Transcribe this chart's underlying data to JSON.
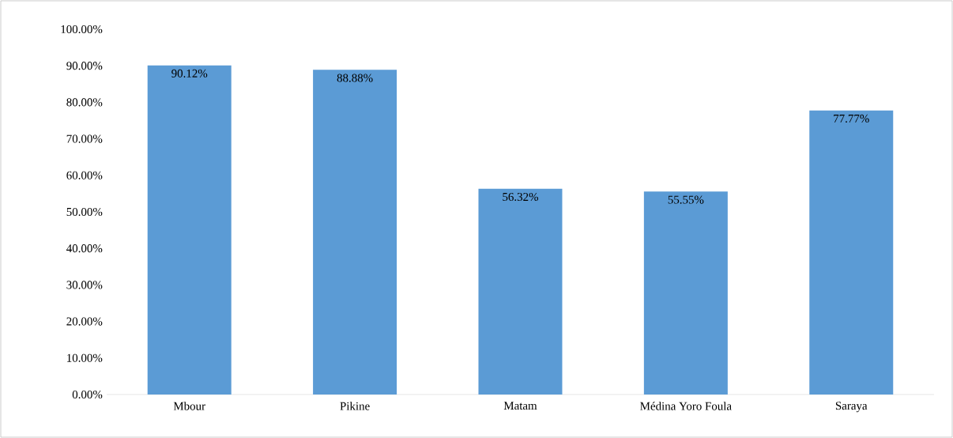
{
  "chart_data": {
    "type": "bar",
    "categories": [
      "Mbour",
      "Pikine",
      "Matam",
      "Médina Yoro Foula",
      "Saraya"
    ],
    "values": [
      90.12,
      88.88,
      56.32,
      55.55,
      77.77
    ],
    "value_labels": [
      "90.12%",
      "88.88%",
      "56.32%",
      "55.55%",
      "77.77%"
    ],
    "color": "#5b9bd5",
    "ylim": [
      0,
      100
    ],
    "yticks": [
      {
        "value": 0,
        "label": "0.00%"
      },
      {
        "value": 10,
        "label": "10.00%"
      },
      {
        "value": 20,
        "label": "20.00%"
      },
      {
        "value": 30,
        "label": "30.00%"
      },
      {
        "value": 40,
        "label": "40.00%"
      },
      {
        "value": 50,
        "label": "50.00%"
      },
      {
        "value": 60,
        "label": "60.00%"
      },
      {
        "value": 70,
        "label": "70.00%"
      },
      {
        "value": 80,
        "label": "80.00%"
      },
      {
        "value": 90,
        "label": "90.00%"
      },
      {
        "value": 100,
        "label": "100.00%"
      }
    ],
    "grid": false
  }
}
